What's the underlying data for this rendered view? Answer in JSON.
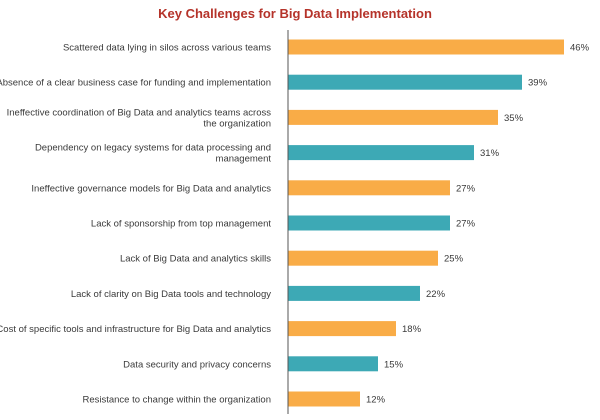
{
  "chart_data": {
    "type": "bar",
    "orientation": "horizontal",
    "title": "Key Challenges for Big Data Implementation",
    "xlabel": "",
    "ylabel": "",
    "grid": false,
    "legend": "none",
    "xlim": [
      0,
      46
    ],
    "colors": {
      "orange": "#f9ac47",
      "teal": "#3da9b5",
      "axis": "#555555"
    },
    "categories": [
      [
        "Scattered data lying in silos across various teams"
      ],
      [
        "Absence of a clear business case for funding and implementation"
      ],
      [
        "Ineffective coordination of Big Data and analytics teams across",
        "the organization"
      ],
      [
        "Dependency on legacy systems for data processing and",
        "management"
      ],
      [
        "Ineffective governance models for Big Data and analytics"
      ],
      [
        "Lack of sponsorship from top management"
      ],
      [
        "Lack of Big Data and analytics skills"
      ],
      [
        "Lack of clarity on Big Data tools and technology"
      ],
      [
        "Cost of specific tools and infrastructure for Big Data and analytics"
      ],
      [
        "Data security and privacy concerns"
      ],
      [
        "Resistance to change within the organization"
      ]
    ],
    "values": [
      46,
      39,
      35,
      31,
      27,
      27,
      25,
      22,
      18,
      15,
      12
    ],
    "value_labels": [
      "46%",
      "39%",
      "35%",
      "31%",
      "27%",
      "27%",
      "25%",
      "22%",
      "18%",
      "15%",
      "12%"
    ],
    "bar_colors": [
      "orange",
      "teal",
      "orange",
      "teal",
      "orange",
      "teal",
      "orange",
      "teal",
      "orange",
      "teal",
      "orange"
    ]
  }
}
